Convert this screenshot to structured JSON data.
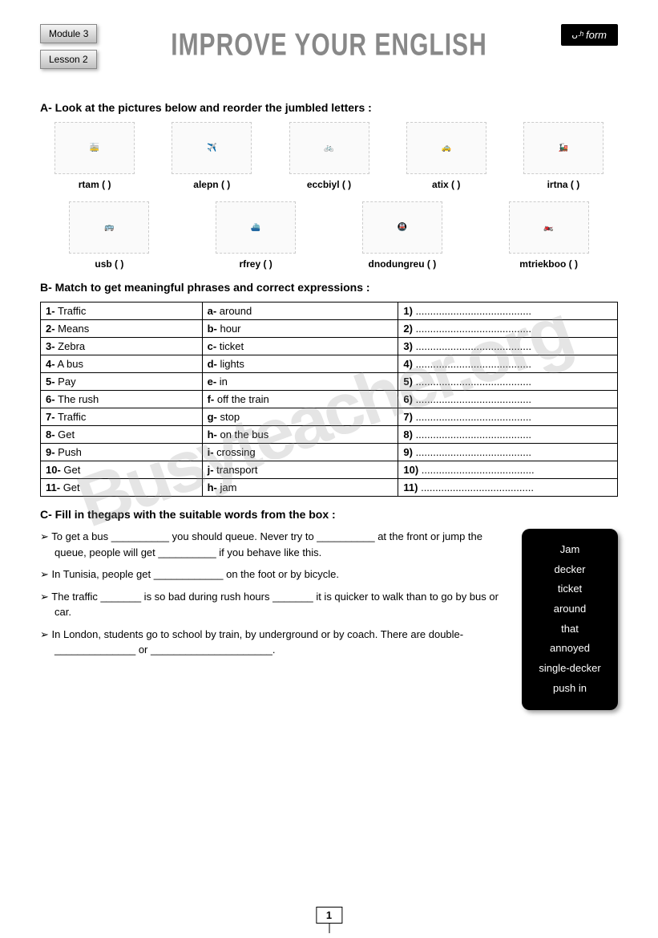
{
  "header": {
    "module": "Module 3",
    "lesson": "Lesson 2",
    "title": "IMPROVE YOUR ENGLISH",
    "form": "8ᵗʰ form"
  },
  "sectionA": {
    "title": "A-  Look at the pictures below and reorder the jumbled letters :",
    "row1": [
      {
        "img": "tram",
        "label": "rtam (              )"
      },
      {
        "img": "plane",
        "label": "alepn (           )"
      },
      {
        "img": "bicycle",
        "label": "eccbiyl (        )"
      },
      {
        "img": "taxi",
        "label": "atix (         )"
      },
      {
        "img": "train",
        "label": "irtna (           )"
      }
    ],
    "row2": [
      {
        "img": "bus",
        "label": "usb (           )"
      },
      {
        "img": "ferry",
        "label": "rfrey (          )"
      },
      {
        "img": "underground",
        "label": "dnodungreu (            )"
      },
      {
        "img": "motorbike",
        "label": "mtriekboo (              )"
      }
    ]
  },
  "sectionB": {
    "title": "B-  Match to get meaningful phrases and correct expressions :",
    "rows": [
      {
        "c1": "1- Traffic",
        "c2": "a-  around",
        "c3": "1) ........................................"
      },
      {
        "c1": "2- Means",
        "c2": "b-  hour",
        "c3": "2) ........................................"
      },
      {
        "c1": "3- Zebra",
        "c2": "c-   ticket",
        "c3": "3) ........................................"
      },
      {
        "c1": "4- A bus",
        "c2": "d-  lights",
        "c3": "4) ........................................"
      },
      {
        "c1": "5- Pay",
        "c2": "e-   in",
        "c3": "5) ........................................"
      },
      {
        "c1": "6- The rush",
        "c2": "f-   off the train",
        "c3": "6) ........................................"
      },
      {
        "c1": "7- Traffic",
        "c2": "g-   stop",
        "c3": "7) ........................................"
      },
      {
        "c1": "8- Get",
        "c2": "h-   on the bus",
        "c3": "8) ........................................"
      },
      {
        "c1": "9- Push",
        "c2": "i-  crossing",
        "c3": "9) ........................................"
      },
      {
        "c1": "10- Get",
        "c2": "j-   transport",
        "c3": "10) ......................................."
      },
      {
        "c1": "11- Get",
        "c2": "h-  jam",
        "c3": "11) ......................................."
      }
    ]
  },
  "sectionC": {
    "title": "C-  Fill in thegaps with the suitable words from the box :",
    "lines": [
      "To get a bus __________ you should queue. Never try to __________ at the front or jump the queue, people will get __________ if you behave like this.",
      "In Tunisia, people get ____________ on the foot or by bicycle.",
      "The traffic _______ is so bad during rush hours _______ it is quicker to walk than to go by bus or car.",
      "In London, students go to school by train, by underground or by coach. There are double-______________ or _____________________."
    ],
    "box": [
      "Jam",
      "decker",
      "ticket",
      "around",
      "that",
      "annoyed",
      "single-decker",
      "push in"
    ]
  },
  "pageNumber": "1",
  "watermark": "Busyteacher.org"
}
